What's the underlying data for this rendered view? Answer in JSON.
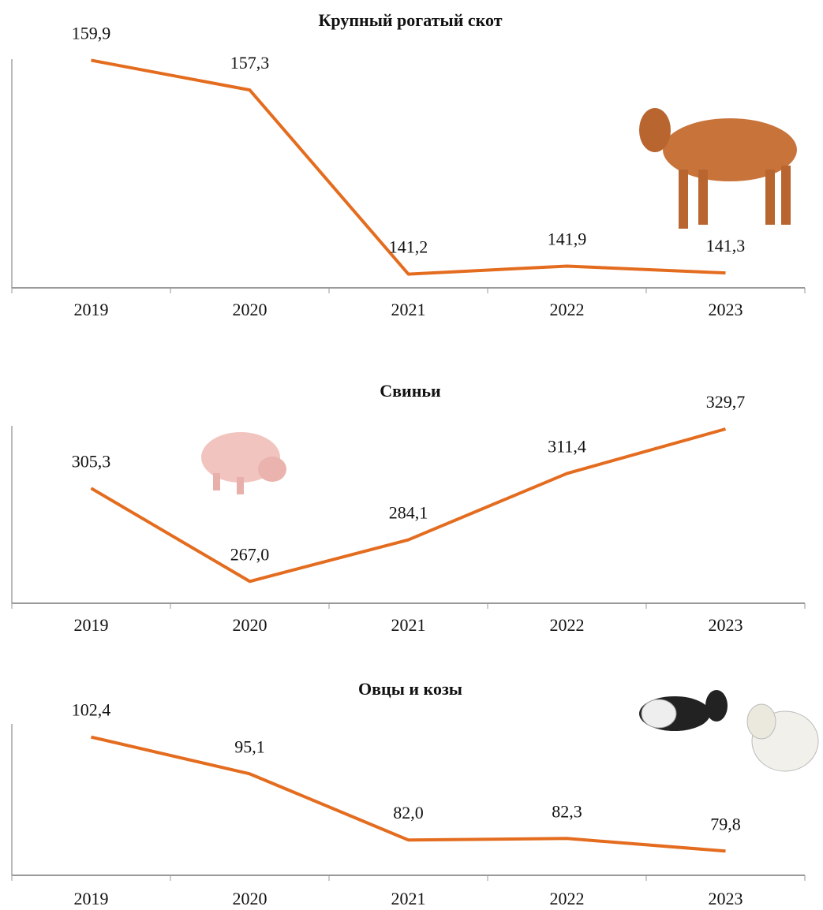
{
  "chart_data": [
    {
      "type": "line",
      "title": "Крупный рогатый скот",
      "categories": [
        "2019",
        "2020",
        "2021",
        "2022",
        "2023"
      ],
      "values": [
        159.9,
        157.3,
        141.2,
        141.9,
        141.3
      ],
      "value_labels": [
        "159,9",
        "157,3",
        "141,2",
        "141,9",
        "141,3"
      ],
      "color": "#e46c1f",
      "ylim": [
        140,
        160
      ]
    },
    {
      "type": "line",
      "title": "Свиньи",
      "categories": [
        "2019",
        "2020",
        "2021",
        "2022",
        "2023"
      ],
      "values": [
        305.3,
        267.0,
        284.1,
        311.4,
        329.7
      ],
      "value_labels": [
        "305,3",
        "267,0",
        "284,1",
        "311,4",
        "329,7"
      ],
      "color": "#e46c1f",
      "ylim": [
        258,
        331
      ]
    },
    {
      "type": "line",
      "title": "Овцы и козы",
      "categories": [
        "2019",
        "2020",
        "2021",
        "2022",
        "2023"
      ],
      "values": [
        102.4,
        95.1,
        82.0,
        82.3,
        79.8
      ],
      "value_labels": [
        "102,4",
        "95,1",
        "82,0",
        "82,3",
        "79,8"
      ],
      "color": "#e46c1f",
      "ylim": [
        75,
        105
      ]
    }
  ]
}
